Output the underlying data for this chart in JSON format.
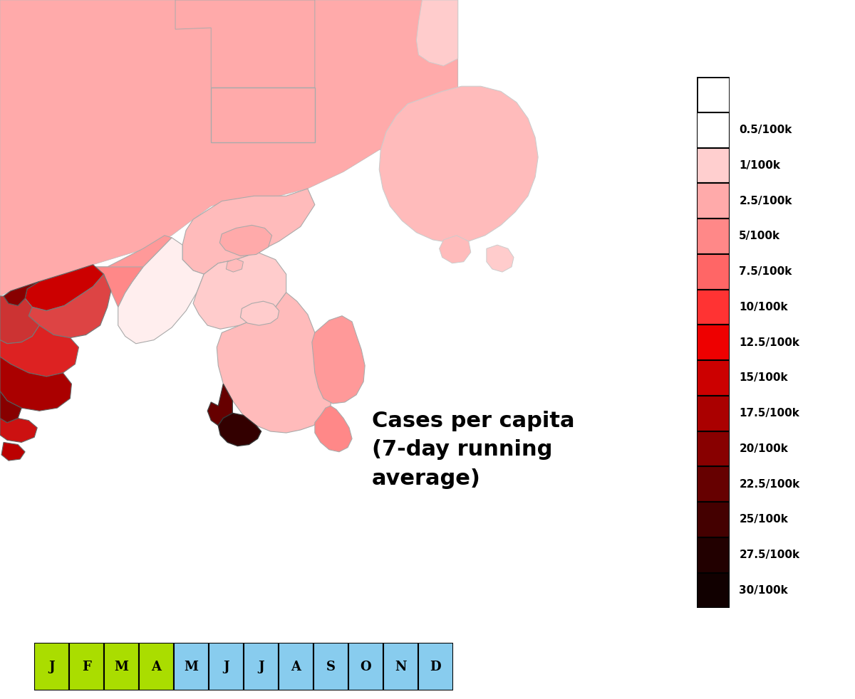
{
  "colorbar_labels": [
    "0.5/100k",
    "1/100k",
    "2.5/100k",
    "5/100k",
    "7.5/100k",
    "10/100k",
    "12.5/100k",
    "15/100k",
    "17.5/100k",
    "20/100k",
    "22.5/100k",
    "25/100k",
    "27.5/100k",
    "30/100k"
  ],
  "colorbar_box_colors": [
    "#FFFFFF",
    "#FFCFCF",
    "#FFAAAA",
    "#FF8888",
    "#FF6666",
    "#FF3333",
    "#EE0000",
    "#CC0000",
    "#AA0000",
    "#880000",
    "#660000",
    "#440000",
    "#220000",
    "#110000"
  ],
  "month_labels": [
    "J",
    "F",
    "M",
    "A",
    "M",
    "J",
    "J",
    "A",
    "S",
    "O",
    "N",
    "D"
  ],
  "month_green_indices": [
    0,
    1,
    2,
    3
  ],
  "month_color_green": "#AADD00",
  "month_color_blue": "#88CCEE",
  "legend_text": "Cases per capita\n(7-day running\naverage)",
  "legend_fontsize": 22,
  "cb_label_fontsize": 11,
  "background_color": "#FFFFFF",
  "edge_color": "#AAAAAA",
  "edge_lw": 0.8,
  "c_white": "#FFFFFF",
  "c_very_light": "#FFCCCC",
  "c_light": "#FFAAAA",
  "c_light2": "#FF9999",
  "c_med_light": "#FF8888",
  "c_med": "#FF6666",
  "c_med_dark": "#DD3333",
  "c_dark": "#CC0000",
  "c_dark2": "#AA0000",
  "c_darker": "#880000",
  "c_darkest": "#660000",
  "c_very_dark": "#440000",
  "c_near_black": "#220000",
  "c_black_red": "#110000"
}
